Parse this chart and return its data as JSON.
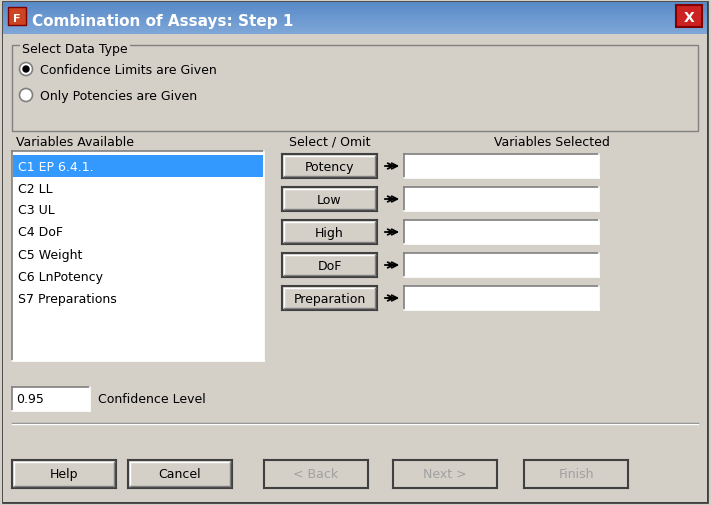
{
  "title": "Combination of Assays: Step 1",
  "bg_color": "#d4d0c8",
  "title_text_color": "#ffffff",
  "close_btn_color": "#cc2222",
  "group_box_label": "Select Data Type",
  "radio1_label": "Confidence Limits are Given",
  "radio2_label": "Only Potencies are Given",
  "radio1_selected": true,
  "col1_header": "Variables Available",
  "col2_header": "Select / Omit",
  "col3_header": "Variables Selected",
  "variables": [
    "C1 EP 6.4.1.",
    "C2 LL",
    "C3 UL",
    "C4 DoF",
    "C5 Weight",
    "C6 LnPotency",
    "S7 Preparations"
  ],
  "selected_var_index": 0,
  "selected_var_color": "#3399ff",
  "buttons_center": [
    "Potency",
    "Low",
    "High",
    "DoF",
    "Preparation"
  ],
  "buttons_underline_char": [
    "P",
    "w",
    "H",
    "D",
    ""
  ],
  "confidence_label": "Confidence Level",
  "confidence_value": "0.95",
  "bottom_buttons": [
    "Help",
    "Cancel",
    "< Back",
    "Next >",
    "Finish"
  ],
  "bottom_buttons_enabled": [
    true,
    true,
    false,
    false,
    false
  ],
  "bottom_buttons_underline": [
    "H",
    "C",
    "",
    "",
    ""
  ],
  "listbox_bg": "#ffffff"
}
